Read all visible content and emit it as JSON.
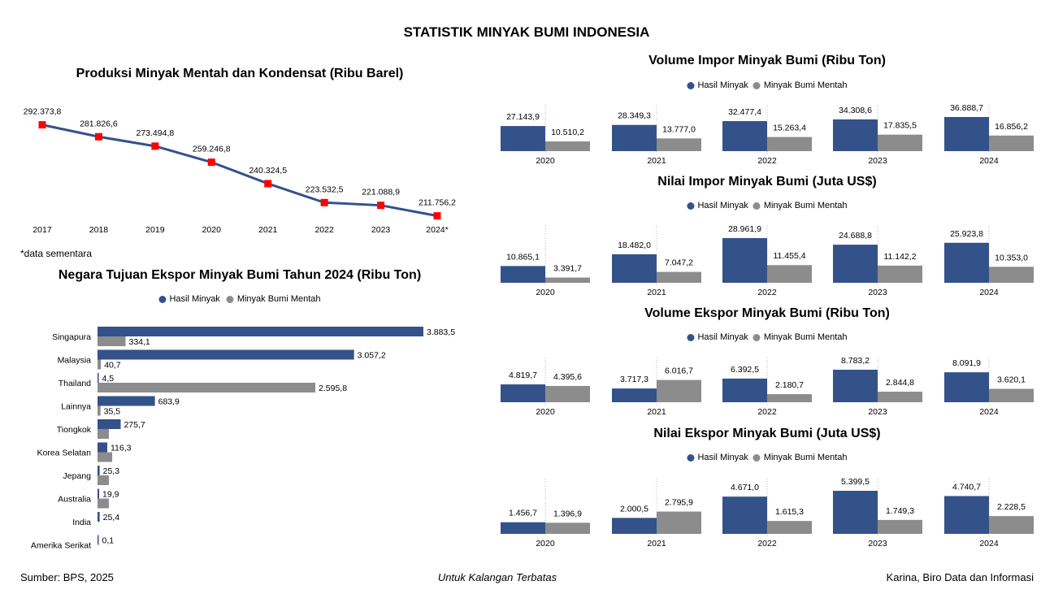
{
  "header": {
    "title": "STATISTIK MINYAK BUMI INDONESIA"
  },
  "colors": {
    "hasil_minyak": "#34528A",
    "minyak_bumi_mentah": "#8C8C8C",
    "marker": "#FF0000"
  },
  "legend": {
    "hasil_minyak": "Hasil Minyak",
    "minyak_bumi_mentah": "Minyak Bumi Mentah"
  },
  "note": "*data sementara",
  "footer": {
    "source": "Sumber: BPS, 2025",
    "center": "Untuk Kalangan Terbatas",
    "author": "Karina, Biro Data dan Informasi"
  },
  "chart_data": [
    {
      "id": "produksi",
      "type": "line",
      "title": "Produksi Minyak Mentah dan Kondensat (Ribu Barel)",
      "categories": [
        "2017",
        "2018",
        "2019",
        "2020",
        "2021",
        "2022",
        "2023",
        "2024*"
      ],
      "values": [
        292373.8,
        281826.6,
        273494.8,
        259246.8,
        240324.5,
        223532.5,
        221088.9,
        211756.2
      ],
      "labels": [
        "292.373,8",
        "281.826,6",
        "273.494,8",
        "259.246,8",
        "240.324,5",
        "223.532,5",
        "221.088,9",
        "211.756,2"
      ],
      "ylim": [
        200000,
        300000
      ],
      "grid": false
    },
    {
      "id": "tujuan_ekspor",
      "type": "bar",
      "orientation": "horizontal",
      "title": "Negara Tujuan Ekspor Minyak Bumi Tahun 2024 (Ribu Ton)",
      "legend_position": "top",
      "categories": [
        "Singapura",
        "Malaysia",
        "Thailand",
        "Lainnya",
        "Tiongkok",
        "Korea Selatan",
        "Jepang",
        "Australia",
        "India",
        "Amerika Serikat"
      ],
      "series": [
        {
          "name": "Hasil Minyak",
          "values": [
            3883.5,
            3057.2,
            4.5,
            683.9,
            275.7,
            116.3,
            25.3,
            19.9,
            25.4,
            0.1
          ],
          "labels": [
            "3.883,5",
            "3.057,2",
            "4,5",
            "683,9",
            "275,7",
            "116,3",
            "25,3",
            "19,9",
            "25,4",
            "0,1"
          ]
        },
        {
          "name": "Minyak Bumi Mentah",
          "values": [
            334.1,
            40.7,
            2595.8,
            35.5,
            135,
            175,
            135,
            135,
            0,
            0
          ],
          "labels": [
            "334,1",
            "40,7",
            "2.595,8",
            "35,5",
            null,
            null,
            null,
            null,
            null,
            null
          ]
        }
      ]
    },
    {
      "id": "volume_impor",
      "type": "bar",
      "title": "Volume Impor Minyak Bumi (Ribu Ton)",
      "legend_position": "top",
      "categories": [
        "2020",
        "2021",
        "2022",
        "2023",
        "2024"
      ],
      "series": [
        {
          "name": "Hasil Minyak",
          "values": [
            27143.9,
            28349.3,
            32477.4,
            34308.6,
            36888.7
          ],
          "labels": [
            "27.143,9",
            "28.349,3",
            "32.477,4",
            "34.308,6",
            "36.888,7"
          ]
        },
        {
          "name": "Minyak Bumi Mentah",
          "values": [
            10510.2,
            13777.0,
            15263.4,
            17835.5,
            16856.2
          ],
          "labels": [
            "10.510,2",
            "13.777,0",
            "15.263,4",
            "17.835,5",
            "16.856,2"
          ]
        }
      ]
    },
    {
      "id": "nilai_impor",
      "type": "bar",
      "title": "Nilai Impor Minyak Bumi (Juta US$)",
      "legend_position": "top",
      "categories": [
        "2020",
        "2021",
        "2022",
        "2023",
        "2024"
      ],
      "series": [
        {
          "name": "Hasil Minyak",
          "values": [
            10865.1,
            18482.0,
            28961.9,
            24688.8,
            25923.8
          ],
          "labels": [
            "10.865,1",
            "18.482,0",
            "28.961,9",
            "24.688,8",
            "25.923,8"
          ]
        },
        {
          "name": "Minyak Bumi Mentah",
          "values": [
            3391.7,
            7047.2,
            11455.4,
            11142.2,
            10353.0
          ],
          "labels": [
            "3.391,7",
            "7.047,2",
            "11.455,4",
            "11.142,2",
            "10.353,0"
          ]
        }
      ]
    },
    {
      "id": "volume_ekspor",
      "type": "bar",
      "title": "Volume Ekspor Minyak Bumi (Ribu Ton)",
      "legend_position": "top",
      "categories": [
        "2020",
        "2021",
        "2022",
        "2023",
        "2024"
      ],
      "series": [
        {
          "name": "Hasil Minyak",
          "values": [
            4819.7,
            3717.3,
            6392.5,
            8783.2,
            8091.9
          ],
          "labels": [
            "4.819,7",
            "3.717,3",
            "6.392,5",
            "8.783,2",
            "8.091,9"
          ]
        },
        {
          "name": "Minyak Bumi Mentah",
          "values": [
            4395.6,
            6016.7,
            2180.7,
            2844.8,
            3620.1
          ],
          "labels": [
            "4.395,6",
            "6.016,7",
            "2.180,7",
            "2.844,8",
            "3.620,1"
          ]
        }
      ]
    },
    {
      "id": "nilai_ekspor",
      "type": "bar",
      "title": "Nilai Ekspor Minyak Bumi (Juta US$)",
      "legend_position": "top",
      "categories": [
        "2020",
        "2021",
        "2022",
        "2023",
        "2024"
      ],
      "series": [
        {
          "name": "Hasil Minyak",
          "values": [
            1456.7,
            2000.5,
            4671.0,
            5399.5,
            4740.7
          ],
          "labels": [
            "1.456,7",
            "2.000,5",
            "4.671,0",
            "5.399,5",
            "4.740,7"
          ]
        },
        {
          "name": "Minyak Bumi Mentah",
          "values": [
            1396.9,
            2795.9,
            1615.3,
            1749.3,
            2228.5
          ],
          "labels": [
            "1.396,9",
            "2.795,9",
            "1.615,3",
            "1.749,3",
            "2.228,5"
          ]
        }
      ]
    }
  ]
}
